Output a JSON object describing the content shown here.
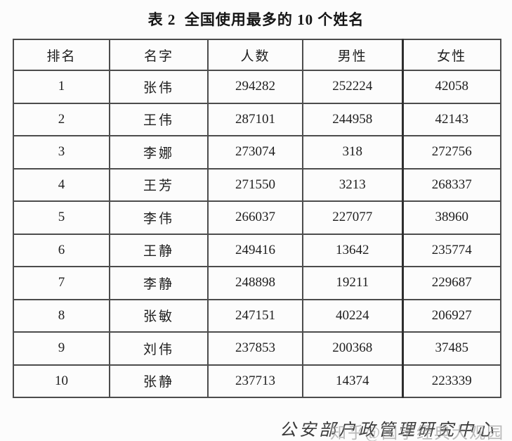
{
  "page": {
    "title": "表 2  全国使用最多的 10 个姓名"
  },
  "table": {
    "headers": [
      "排名",
      "名字",
      "人数",
      "男性",
      "女性"
    ],
    "rows": [
      [
        "1",
        "张伟",
        "294282",
        "252224",
        "42058"
      ],
      [
        "2",
        "王伟",
        "287101",
        "244958",
        "42143"
      ],
      [
        "3",
        "李娜",
        "273074",
        "318",
        "272756"
      ],
      [
        "4",
        "王芳",
        "271550",
        "3213",
        "268337"
      ],
      [
        "5",
        "李伟",
        "266037",
        "227077",
        "38960"
      ],
      [
        "6",
        "王静",
        "249416",
        "13642",
        "235774"
      ],
      [
        "7",
        "李静",
        "248898",
        "19211",
        "229687"
      ],
      [
        "8",
        "张敏",
        "247151",
        "40224",
        "206927"
      ],
      [
        "9",
        "刘伟",
        "237853",
        "200368",
        "37485"
      ],
      [
        "10",
        "张静",
        "237713",
        "14374",
        "223339"
      ]
    ]
  },
  "footer": {
    "source": "公安部户政管理研究中心",
    "watermark": "知乎@国学经典大观园"
  },
  "colors": {
    "background": "#fcfcfc",
    "border": "#4c4c4c",
    "thick_border": "#2e2e2e",
    "text": "#1e1e1e",
    "watermark": "#8f8f8f"
  },
  "chart_data": {
    "type": "table",
    "title": "表 2  全国使用最多的 10 个姓名",
    "columns": [
      "排名",
      "名字",
      "人数",
      "男性",
      "女性"
    ],
    "rows": [
      [
        1,
        "张伟",
        294282,
        252224,
        42058
      ],
      [
        2,
        "王伟",
        287101,
        244958,
        42143
      ],
      [
        3,
        "李娜",
        273074,
        318,
        272756
      ],
      [
        4,
        "王芳",
        271550,
        3213,
        268337
      ],
      [
        5,
        "李伟",
        266037,
        227077,
        38960
      ],
      [
        6,
        "王静",
        249416,
        13642,
        235774
      ],
      [
        7,
        "李静",
        248898,
        19211,
        229687
      ],
      [
        8,
        "张敏",
        247151,
        40224,
        206927
      ],
      [
        9,
        "刘伟",
        237853,
        200368,
        37485
      ],
      [
        10,
        "张静",
        237713,
        14374,
        223339
      ]
    ],
    "source_note": "公安部户政管理研究中心",
    "watermark": "知乎@国学经典大观园"
  }
}
